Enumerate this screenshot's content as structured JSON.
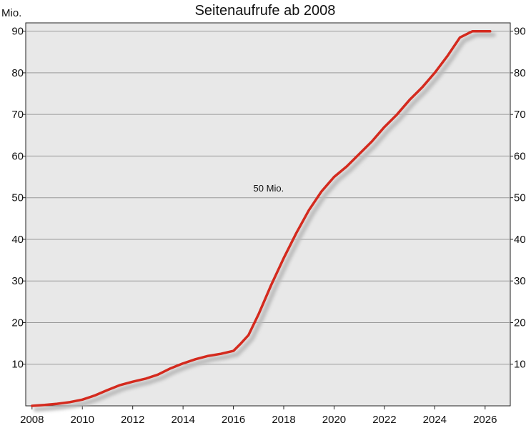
{
  "chart_data": {
    "type": "line",
    "title": "Seitenaufrufe ab 2008",
    "ylabel": "Mio.",
    "xlabel": "",
    "xlim": [
      2007.75,
      2027.0
    ],
    "ylim": [
      0,
      92
    ],
    "x_ticks": [
      2008,
      2010,
      2012,
      2014,
      2016,
      2018,
      2020,
      2022,
      2024,
      2026
    ],
    "y_ticks": [
      10,
      20,
      30,
      40,
      50,
      60,
      70,
      80,
      90
    ],
    "grid": "horizontal",
    "y_axis_labels": "both-sides",
    "annotations": [
      {
        "text": "50 Mio.",
        "x": 2017.4,
        "y": 51.5
      }
    ],
    "series": [
      {
        "color": "#d42a1e",
        "shadow_color": "#b9b9b9",
        "x": [
          2008.0,
          2008.5,
          2009.0,
          2009.5,
          2010.0,
          2010.5,
          2011.0,
          2011.5,
          2012.0,
          2012.5,
          2013.0,
          2013.5,
          2014.0,
          2014.5,
          2015.0,
          2015.5,
          2016.0,
          2016.3,
          2016.6,
          2017.0,
          2017.5,
          2018.0,
          2018.5,
          2019.0,
          2019.5,
          2020.0,
          2020.5,
          2021.0,
          2021.5,
          2022.0,
          2022.5,
          2023.0,
          2023.5,
          2024.0,
          2024.5,
          2025.0,
          2025.5,
          2026.0,
          2026.2
        ],
        "y": [
          0.0,
          0.2,
          0.5,
          0.9,
          1.5,
          2.5,
          3.8,
          5.0,
          5.8,
          6.5,
          7.5,
          9.0,
          10.2,
          11.2,
          12.0,
          12.5,
          13.2,
          15.0,
          17.0,
          22.0,
          29.0,
          35.5,
          41.5,
          47.0,
          51.5,
          55.0,
          57.5,
          60.5,
          63.5,
          67.0,
          70.0,
          73.5,
          76.5,
          80.0,
          84.0,
          88.5,
          90.0,
          90.0,
          90.0
        ]
      }
    ]
  }
}
